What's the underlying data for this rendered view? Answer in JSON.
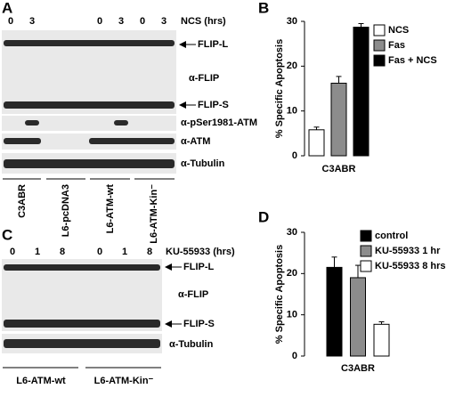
{
  "panels": {
    "A": {
      "label": "A",
      "lanes": [
        "0",
        "3",
        "0",
        "3",
        "0",
        "3"
      ],
      "treatment": "NCS (hrs)",
      "bands": [
        "FLIP-L",
        "α-FLIP",
        "FLIP-S",
        "α-pSer1981-ATM",
        "α-ATM",
        "α-Tubulin"
      ],
      "cell_lines": [
        "C3ABR",
        "L6-pcDNA3",
        "L6-ATM-wt",
        "L6-ATM-Kin⁻"
      ]
    },
    "C": {
      "label": "C",
      "lanes": [
        "0",
        "1",
        "8",
        "0",
        "1",
        "8"
      ],
      "treatment": "KU-55933 (hrs)",
      "bands": [
        "FLIP-L",
        "α-FLIP",
        "FLIP-S",
        "α-Tubulin"
      ],
      "cell_lines": [
        "L6-ATM-wt",
        "L6-ATM-Kin⁻"
      ]
    }
  },
  "chart_data": [
    {
      "type": "bar",
      "panel": "B",
      "y_label": "% Specific Apoptosis",
      "categories": [
        "C3ABR"
      ],
      "ylim": [
        0,
        30
      ],
      "yticks": [
        0,
        10,
        20,
        30
      ],
      "legend": "right",
      "series": [
        {
          "name": "NCS",
          "color": "#ffffff",
          "values": [
            5.8
          ],
          "errors": [
            0.6
          ]
        },
        {
          "name": "Fas",
          "color": "#8c8c8c",
          "values": [
            16.2
          ],
          "errors": [
            1.5
          ]
        },
        {
          "name": "Fas + NCS",
          "color": "#000000",
          "values": [
            28.7
          ],
          "errors": [
            0.8
          ]
        }
      ]
    },
    {
      "type": "bar",
      "panel": "D",
      "y_label": "% Specific Apoptosis",
      "categories": [
        "C3ABR"
      ],
      "ylim": [
        0,
        30
      ],
      "yticks": [
        0,
        10,
        20,
        30
      ],
      "legend": "top",
      "series": [
        {
          "name": "control",
          "color": "#000000",
          "values": [
            21.5
          ],
          "errors": [
            2.5
          ]
        },
        {
          "name": "KU-55933 1 hr",
          "color": "#8c8c8c",
          "values": [
            19
          ],
          "errors": [
            3
          ]
        },
        {
          "name": "KU-55933 8 hrs",
          "color": "#ffffff",
          "values": [
            7.7
          ],
          "errors": [
            0.6
          ]
        }
      ]
    }
  ]
}
